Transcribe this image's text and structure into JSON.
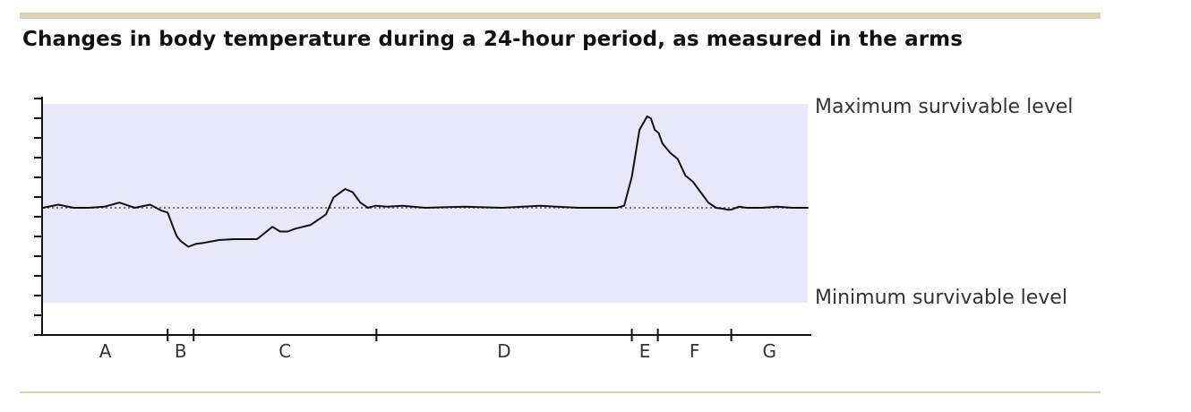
{
  "title": "Changes in body temperature during a 24-hour period, as measured in the arms",
  "chart_data": {
    "type": "line",
    "title": "Changes in body temperature during a 24-hour period, as measured in the arms",
    "xlabel": "",
    "ylabel": "",
    "grid": false,
    "colors": {
      "band": "#e9e8fb",
      "line": "#111111",
      "baseline": "#777777",
      "rule": "#dcd1b4"
    },
    "band_labels": {
      "max": "Maximum survivable level",
      "min": "Minimum survivable level"
    },
    "segments": [
      {
        "label": "A",
        "start": 0,
        "end": 16.3
      },
      {
        "label": "B",
        "start": 16.3,
        "end": 19.7
      },
      {
        "label": "C",
        "start": 19.7,
        "end": 43.6
      },
      {
        "label": "D",
        "start": 43.6,
        "end": 77.0
      },
      {
        "label": "E",
        "start": 77.0,
        "end": 80.4
      },
      {
        "label": "F",
        "start": 80.4,
        "end": 90.0
      },
      {
        "label": "G",
        "start": 90.0,
        "end": 100
      }
    ],
    "ylim": [
      -11,
      10
    ],
    "band": [
      -10,
      10
    ],
    "baseline": 0,
    "xlim": [
      0,
      100
    ],
    "series": [
      {
        "x": [
          0,
          2,
          4,
          6,
          8,
          10,
          12,
          14,
          15.5,
          16.3,
          17,
          17.5,
          18,
          19,
          20,
          21,
          23,
          25,
          28,
          30,
          31,
          32,
          33,
          35,
          37,
          38,
          39.5,
          40.5,
          41.5,
          42.5,
          43.5,
          45,
          47,
          50,
          55,
          60,
          65,
          70,
          75,
          76,
          77,
          78,
          79,
          79.5,
          80,
          80.5,
          81,
          82,
          83,
          84,
          85,
          86,
          87,
          88,
          89,
          89.5,
          90,
          91,
          92,
          94,
          96,
          98,
          100
        ],
        "y": [
          0,
          0.3,
          0,
          0,
          0.1,
          0.5,
          0,
          0.3,
          -0.3,
          -0.5,
          -2,
          -3,
          -3.5,
          -4.1,
          -3.8,
          -3.7,
          -3.4,
          -3.3,
          -3.3,
          -2,
          -2.5,
          -2.5,
          -2.2,
          -1.8,
          -0.7,
          1,
          1.8,
          1.5,
          0.5,
          0,
          0.2,
          0.1,
          0.2,
          0,
          0.1,
          0,
          0.2,
          0,
          0,
          0.2,
          3,
          7.5,
          8.8,
          8.6,
          7.5,
          7.2,
          6.2,
          5.3,
          4.7,
          3.1,
          2.5,
          1.5,
          0.5,
          0,
          -0.1,
          -0.2,
          -0.2,
          0.1,
          0,
          0,
          0.1,
          0,
          0
        ]
      }
    ]
  }
}
